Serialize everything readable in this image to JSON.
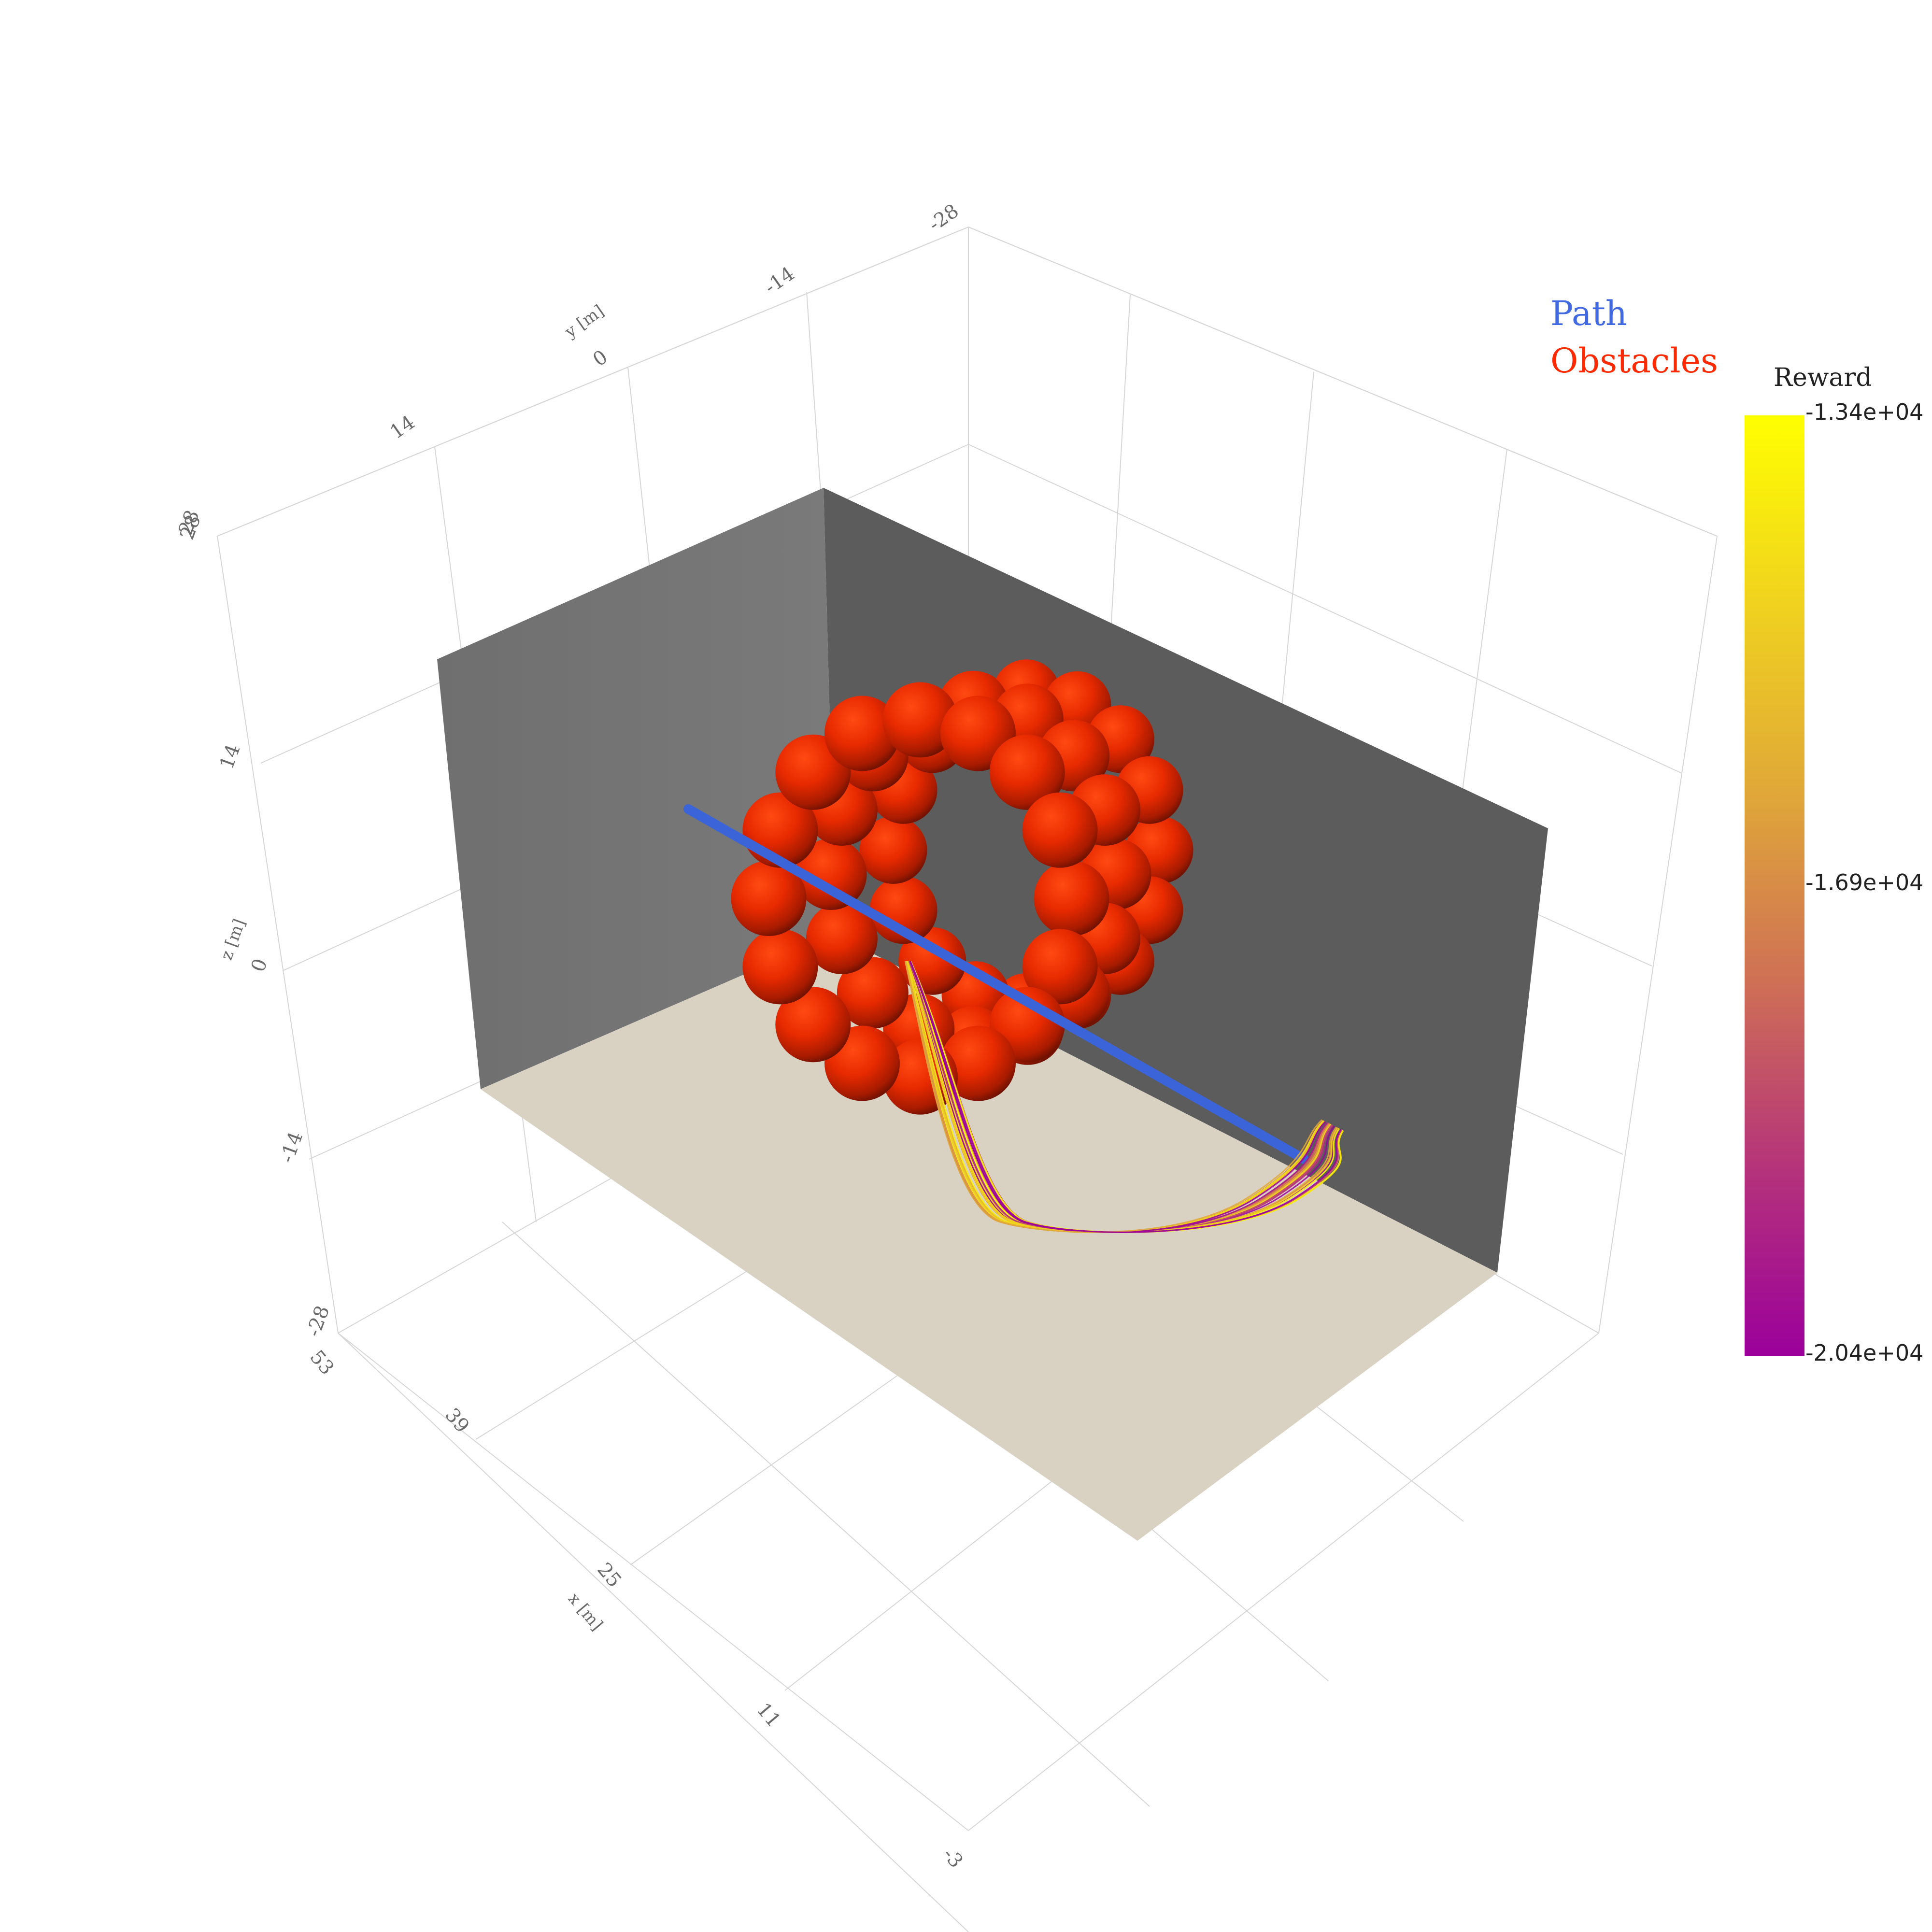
{
  "chart_data": {
    "type": "scatter3d",
    "axes": {
      "x": {
        "title": "x [m]",
        "ticks": [
          "53",
          "39",
          "25",
          "11",
          "-3"
        ]
      },
      "y": {
        "title": "y [m]",
        "ticks": [
          "28",
          "14",
          "0",
          "-14",
          "-28"
        ]
      },
      "z": {
        "title": "z [m]",
        "ticks": [
          "28",
          "14",
          "0",
          "-14",
          "-28"
        ]
      }
    },
    "legend": {
      "placement": "top-right",
      "items": [
        {
          "name": "Path",
          "color": "#4169e1"
        },
        {
          "name": "Obstacles",
          "color": "#ff2a00"
        }
      ]
    },
    "colorbar": {
      "title": "Reward",
      "max_label": "-1.34e+04",
      "mid_label": "-1.69e+04",
      "min_label": "-2.04e+04",
      "colorscale": [
        "#9b009b",
        "#b5337a",
        "#cf7055",
        "#e0a838",
        "#f0d21f",
        "#ffff00"
      ]
    },
    "series": {
      "path_color": "#3a64d8",
      "obstacle_color": "#e82a00",
      "wall_color": "#5c5c5c",
      "floor_color": "#d9d1c2"
    }
  }
}
